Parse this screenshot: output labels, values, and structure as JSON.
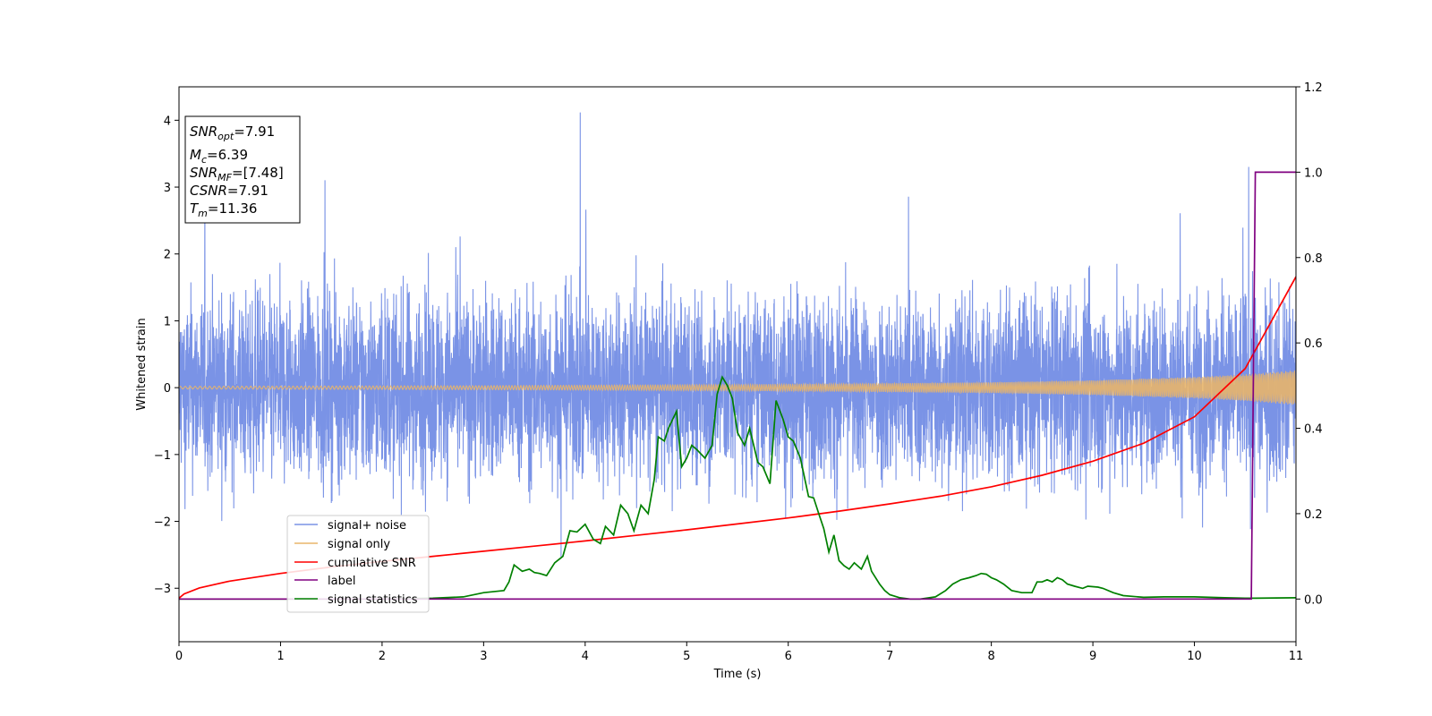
{
  "chart_data": {
    "type": "line",
    "xlabel": "Time (s)",
    "ylabel": "Whitened strain",
    "xlim": [
      0,
      11
    ],
    "ylim": [
      -3.8,
      4.5
    ],
    "y2lim": [
      -0.1,
      1.2
    ],
    "grid": false,
    "legend_position": "lower-left",
    "x_ticks": [
      "0",
      "1",
      "2",
      "3",
      "4",
      "5",
      "6",
      "7",
      "8",
      "9",
      "10",
      "11"
    ],
    "y_ticks": [
      "−3",
      "−2",
      "−1",
      "0",
      "1",
      "2",
      "3",
      "4"
    ],
    "y2_ticks": [
      "0.0",
      "0.2",
      "0.4",
      "0.6",
      "0.8",
      "1.0",
      "1.2"
    ],
    "legend": {
      "noise_label": "signal+ noise",
      "signal_label": "signal only",
      "csnr_label": "cumilative SNR",
      "label_label": "label",
      "stats_label": "signal statistics"
    },
    "stats_box": {
      "snr_opt_base": "SNR",
      "snr_opt_sub": "opt",
      "snr_opt_value": "=7.91",
      "mc_base": "M",
      "mc_sub": "c",
      "mc_value": "=6.39",
      "snr_mf_base": "SNR",
      "snr_mf_sub": "MF",
      "snr_mf_value": "=[7.48]",
      "csnr_base": "CSNR",
      "csnr_value": "=7.91",
      "tm_base": "T",
      "tm_sub": "m",
      "tm_value": "=11.36"
    },
    "series": [
      {
        "name": "signal+ noise",
        "axis": "left",
        "color": "#7a93e6",
        "description_envelope": {
          "typical_range": [
            -1.9,
            2.0
          ],
          "peak_max": 4.18,
          "peak_min": -3.45
        }
      },
      {
        "name": "signal only",
        "axis": "left",
        "color": "#e8b56a",
        "amplitude_envelope": {
          "x": [
            0,
            3,
            6,
            8,
            9,
            10,
            10.5,
            11
          ],
          "amp": [
            0.02,
            0.03,
            0.05,
            0.08,
            0.11,
            0.16,
            0.2,
            0.26
          ]
        }
      },
      {
        "name": "cumilative SNR",
        "axis": "right",
        "color": "#ff0000",
        "x": [
          0,
          0.05,
          0.2,
          0.5,
          1,
          1.5,
          2,
          2.5,
          3,
          3.5,
          4,
          4.5,
          5,
          5.5,
          6,
          6.5,
          7,
          7.5,
          8,
          8.5,
          9,
          9.5,
          10,
          10.5,
          11
        ],
        "y": [
          0.002,
          0.012,
          0.026,
          0.042,
          0.06,
          0.075,
          0.088,
          0.1,
          0.112,
          0.124,
          0.136,
          0.149,
          0.162,
          0.176,
          0.19,
          0.206,
          0.223,
          0.241,
          0.263,
          0.29,
          0.323,
          0.365,
          0.427,
          0.54,
          0.755
        ]
      },
      {
        "name": "label",
        "axis": "right",
        "color": "#800080",
        "x": [
          0,
          10.56,
          10.6,
          11
        ],
        "y": [
          0,
          0,
          1.0,
          1.0
        ]
      },
      {
        "name": "signal statistics",
        "axis": "right",
        "color": "#008000",
        "x": [
          0,
          1,
          2,
          2.5,
          2.8,
          3.0,
          3.2,
          3.25,
          3.3,
          3.38,
          3.45,
          3.5,
          3.55,
          3.62,
          3.7,
          3.78,
          3.85,
          3.92,
          4.0,
          4.08,
          4.15,
          4.2,
          4.28,
          4.35,
          4.42,
          4.48,
          4.55,
          4.62,
          4.68,
          4.72,
          4.78,
          4.82,
          4.9,
          4.95,
          5.0,
          5.05,
          5.1,
          5.18,
          5.25,
          5.3,
          5.35,
          5.4,
          5.45,
          5.5,
          5.57,
          5.62,
          5.7,
          5.75,
          5.82,
          5.88,
          5.95,
          6.0,
          6.05,
          6.12,
          6.2,
          6.25,
          6.3,
          6.35,
          6.4,
          6.45,
          6.5,
          6.55,
          6.6,
          6.65,
          6.72,
          6.78,
          6.82,
          6.9,
          6.95,
          7.0,
          7.1,
          7.2,
          7.3,
          7.45,
          7.55,
          7.62,
          7.7,
          7.78,
          7.85,
          7.9,
          7.95,
          8.0,
          8.05,
          8.12,
          8.2,
          8.3,
          8.4,
          8.45,
          8.5,
          8.55,
          8.6,
          8.65,
          8.7,
          8.75,
          8.82,
          8.9,
          8.95,
          9.05,
          9.1,
          9.2,
          9.3,
          9.5,
          9.7,
          10.0,
          10.3,
          10.5,
          10.6,
          11.0
        ],
        "y": [
          0.0,
          0.0,
          0.0,
          0.002,
          0.005,
          0.015,
          0.02,
          0.04,
          0.08,
          0.065,
          0.07,
          0.062,
          0.06,
          0.055,
          0.085,
          0.1,
          0.16,
          0.157,
          0.175,
          0.14,
          0.13,
          0.17,
          0.15,
          0.22,
          0.2,
          0.16,
          0.22,
          0.2,
          0.28,
          0.38,
          0.37,
          0.4,
          0.44,
          0.31,
          0.33,
          0.36,
          0.35,
          0.33,
          0.36,
          0.48,
          0.52,
          0.5,
          0.47,
          0.39,
          0.36,
          0.4,
          0.32,
          0.31,
          0.27,
          0.465,
          0.42,
          0.38,
          0.37,
          0.33,
          0.24,
          0.237,
          0.2,
          0.165,
          0.11,
          0.15,
          0.09,
          0.078,
          0.07,
          0.085,
          0.07,
          0.1,
          0.065,
          0.035,
          0.02,
          0.01,
          0.003,
          0.0,
          0.0,
          0.005,
          0.02,
          0.035,
          0.045,
          0.05,
          0.055,
          0.06,
          0.058,
          0.05,
          0.045,
          0.035,
          0.02,
          0.015,
          0.015,
          0.04,
          0.04,
          0.045,
          0.04,
          0.05,
          0.045,
          0.035,
          0.03,
          0.025,
          0.03,
          0.028,
          0.025,
          0.015,
          0.008,
          0.004,
          0.005,
          0.005,
          0.003,
          0.002,
          0.002,
          0.003
        ]
      }
    ]
  }
}
